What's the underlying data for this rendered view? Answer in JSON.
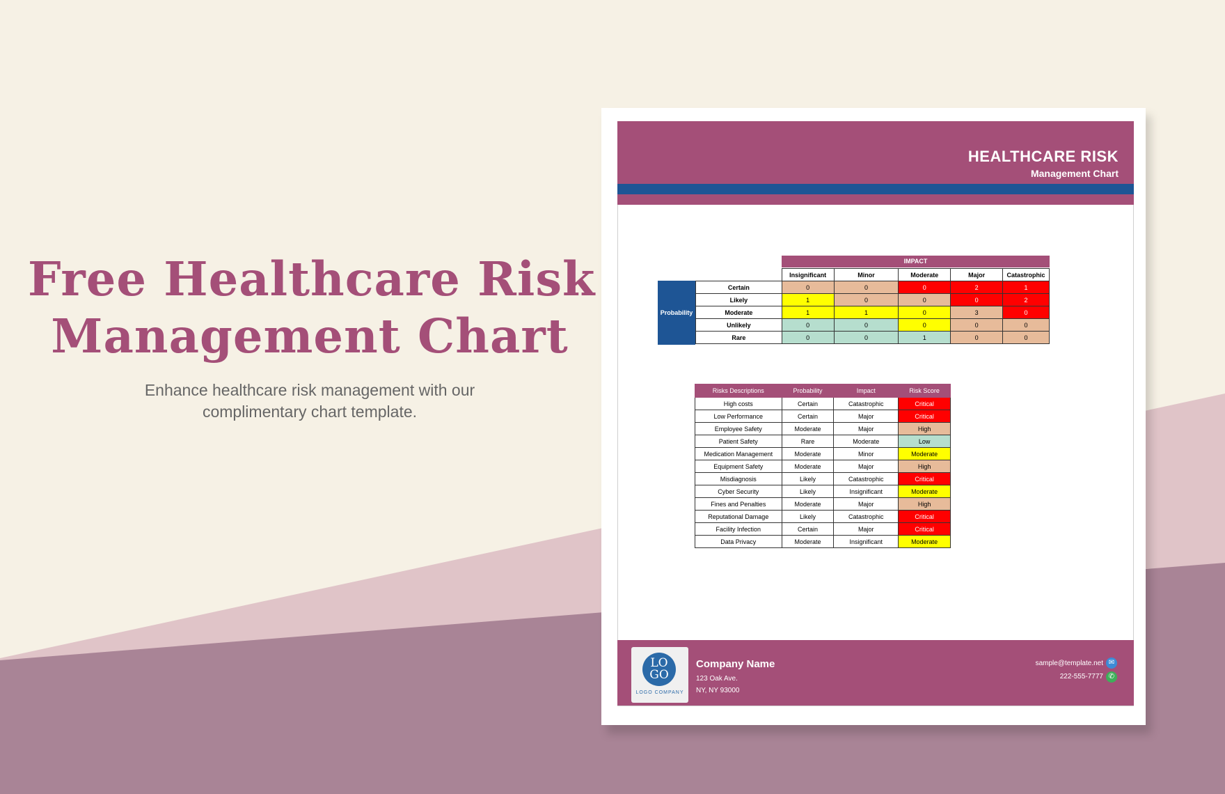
{
  "hero": {
    "title_line1": "Free Healthcare Risk",
    "title_line2": "Management Chart",
    "subtitle_line1": "Enhance healthcare risk management with our",
    "subtitle_line2": "complimentary chart template."
  },
  "document": {
    "header_title": "HEALTHCARE RISK",
    "header_subtitle": "Management Chart",
    "matrix": {
      "impact_label": "IMPACT",
      "probability_label": "Probability",
      "impact_levels": [
        "Insignificant",
        "Minor",
        "Moderate",
        "Major",
        "Catastrophic"
      ],
      "rows": [
        {
          "label": "Certain",
          "values": [
            "0",
            "0",
            "0",
            "2",
            "1"
          ],
          "colors": [
            "#e7bb9a",
            "#e7bb9a",
            "#ff0000",
            "#ff0000",
            "#ff0000"
          ]
        },
        {
          "label": "Likely",
          "values": [
            "1",
            "0",
            "0",
            "0",
            "2"
          ],
          "colors": [
            "#ffff00",
            "#e7bb9a",
            "#e7bb9a",
            "#ff0000",
            "#ff0000"
          ]
        },
        {
          "label": "Moderate",
          "values": [
            "1",
            "1",
            "0",
            "3",
            "0"
          ],
          "colors": [
            "#ffff00",
            "#ffff00",
            "#ffff00",
            "#e7bb9a",
            "#ff0000"
          ]
        },
        {
          "label": "Unlikely",
          "values": [
            "0",
            "0",
            "0",
            "0",
            "0"
          ],
          "colors": [
            "#b6dece",
            "#b6dece",
            "#ffff00",
            "#e7bb9a",
            "#e7bb9a"
          ]
        },
        {
          "label": "Rare",
          "values": [
            "0",
            "0",
            "1",
            "0",
            "0"
          ],
          "colors": [
            "#b6dece",
            "#b6dece",
            "#b6dece",
            "#e7bb9a",
            "#e7bb9a"
          ]
        }
      ]
    },
    "risk_table": {
      "headers": [
        "Risks Descriptions",
        "Probability",
        "Impact",
        "Risk Score"
      ],
      "rows": [
        {
          "desc": "High costs",
          "probability": "Certain",
          "impact": "Catastrophic",
          "score": "Critical"
        },
        {
          "desc": "Low Performance",
          "probability": "Certain",
          "impact": "Major",
          "score": "Critical"
        },
        {
          "desc": "Employee Safety",
          "probability": "Moderate",
          "impact": "Major",
          "score": "High"
        },
        {
          "desc": "Patient Safety",
          "probability": "Rare",
          "impact": "Moderate",
          "score": "Low"
        },
        {
          "desc": "Medication Management",
          "probability": "Moderate",
          "impact": "Minor",
          "score": "Moderate"
        },
        {
          "desc": "Equipment Safety",
          "probability": "Moderate",
          "impact": "Major",
          "score": "High"
        },
        {
          "desc": "Misdiagnosis",
          "probability": "Likely",
          "impact": "Catastrophic",
          "score": "Critical"
        },
        {
          "desc": "Cyber Security",
          "probability": "Likely",
          "impact": "Insignificant",
          "score": "Moderate"
        },
        {
          "desc": "Fines and Penalties",
          "probability": "Moderate",
          "impact": "Major",
          "score": "High"
        },
        {
          "desc": "Reputational Damage",
          "probability": "Likely",
          "impact": "Catastrophic",
          "score": "Critical"
        },
        {
          "desc": "Facility Infection",
          "probability": "Certain",
          "impact": "Major",
          "score": "Critical"
        },
        {
          "desc": "Data Privacy",
          "probability": "Moderate",
          "impact": "Insignificant",
          "score": "Moderate"
        }
      ]
    },
    "footer": {
      "logo_line1": "LO",
      "logo_line2": "GO",
      "logo_caption": "LOGO COMPANY",
      "company_name": "Company Name",
      "address_line1": "123 Oak Ave.",
      "address_line2": "NY, NY 93000",
      "email": "sample@template.net",
      "phone": "222-555-7777",
      "email_icon": "mail-icon",
      "phone_icon": "phone-icon"
    }
  },
  "colors": {
    "brand": "#a44f78",
    "accent_blue": "#1e5595",
    "critical": "#ff0000",
    "moderate": "#ffff00",
    "high": "#e7bb9a",
    "low": "#b6dece"
  }
}
